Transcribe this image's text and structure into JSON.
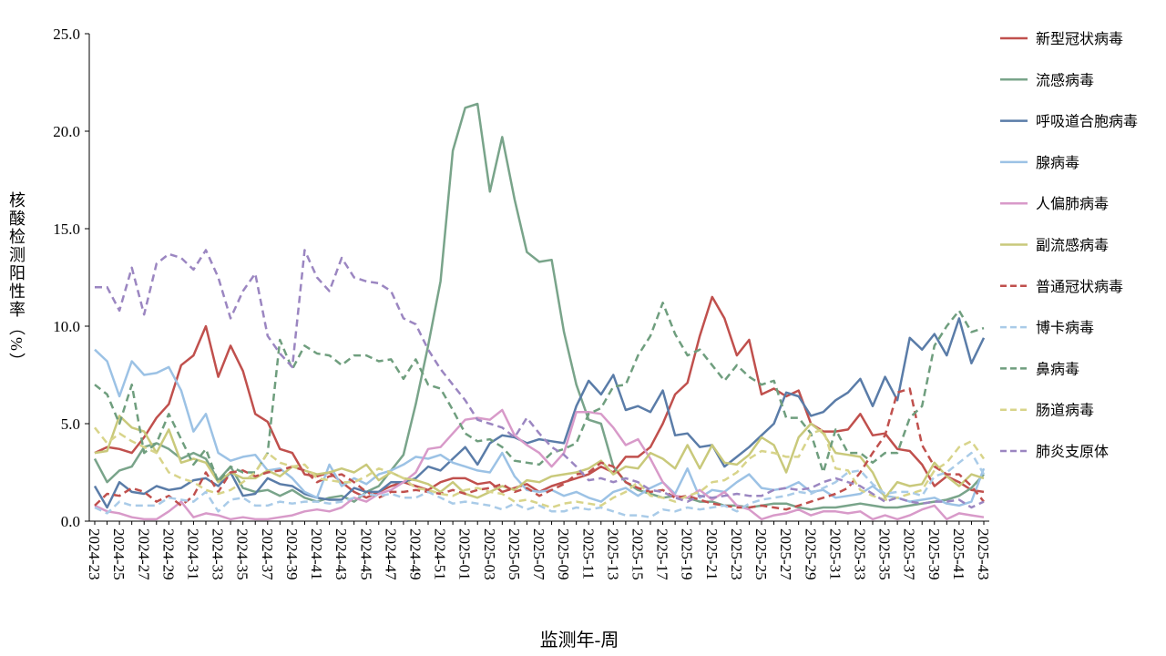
{
  "chart_data": {
    "type": "line",
    "y_label": "核酸检测阳性率（%）",
    "x_label": "监测年-周",
    "ylim": [
      0,
      25
    ],
    "yticks": [
      {
        "value": 0,
        "label": "0.0"
      },
      {
        "value": 5,
        "label": "5.0"
      },
      {
        "value": 10,
        "label": "10.0"
      },
      {
        "value": 15,
        "label": "15.0"
      },
      {
        "value": 20,
        "label": "20.0"
      },
      {
        "value": 25,
        "label": "25.0"
      }
    ],
    "grid": false,
    "legend": "right",
    "categories": [
      "2024-23",
      null,
      "2024-25",
      null,
      "2024-27",
      null,
      "2024-29",
      null,
      "2024-31",
      null,
      "2024-33",
      null,
      "2024-35",
      null,
      "2024-37",
      null,
      "2024-39",
      null,
      "2024-41",
      null,
      "2024-43",
      null,
      "2024-45",
      null,
      "2024-47",
      null,
      "2024-49",
      null,
      "2024-51",
      null,
      "2025-01",
      null,
      "2025-03",
      null,
      "2025-05",
      null,
      "2025-07",
      null,
      "2025-09",
      null,
      "2025-11",
      null,
      "2025-13",
      null,
      "2025-15",
      null,
      "2025-17",
      null,
      "2025-19",
      null,
      "2025-21",
      null,
      "2025-23",
      null,
      "2025-25",
      null,
      "2025-27",
      null,
      "2025-29",
      null,
      "2025-31",
      null,
      "2025-33",
      null,
      "2025-35",
      null,
      "2025-37",
      null,
      "2025-39",
      null,
      "2025-41",
      null,
      "2025-43"
    ],
    "series": [
      {
        "name": "新型冠状病毒",
        "color": "#c0504d",
        "style": "solid",
        "values": [
          3.5,
          3.8,
          3.7,
          3.5,
          4.3,
          5.3,
          6.0,
          8.0,
          8.5,
          10.0,
          7.4,
          9.0,
          7.7,
          5.5,
          5.1,
          3.7,
          3.5,
          2.4,
          2.3,
          2.5,
          2.0,
          1.5,
          1.2,
          1.5,
          1.8,
          2.0,
          1.8,
          1.6,
          2.0,
          2.2,
          2.2,
          1.9,
          2.0,
          1.5,
          1.7,
          1.9,
          1.5,
          1.8,
          2.0,
          2.2,
          2.4,
          2.8,
          2.5,
          3.3,
          3.3,
          3.8,
          5.0,
          6.5,
          7.1,
          9.5,
          11.5,
          10.4,
          8.5,
          9.3,
          6.5,
          6.8,
          6.4,
          6.7,
          5.0,
          4.6,
          4.6,
          4.7,
          5.5,
          4.4,
          4.5,
          3.7,
          3.6,
          2.9,
          1.8,
          2.3,
          2.0,
          1.6,
          1.5
        ]
      },
      {
        "name": "流感病毒",
        "color": "#79a48a",
        "style": "solid",
        "values": [
          3.2,
          2.0,
          2.6,
          2.8,
          3.8,
          4.0,
          3.7,
          3.2,
          3.5,
          3.2,
          2.1,
          2.8,
          1.7,
          1.5,
          1.6,
          1.3,
          1.6,
          1.2,
          1.0,
          1.2,
          1.3,
          1.0,
          1.5,
          1.8,
          2.6,
          3.4,
          6.0,
          9.0,
          12.3,
          19.0,
          21.2,
          21.4,
          16.9,
          19.7,
          16.5,
          13.8,
          13.3,
          13.4,
          9.7,
          7.0,
          5.2,
          5.0,
          2.8,
          2.0,
          1.6,
          1.4,
          1.2,
          1.3,
          1.2,
          1.0,
          1.0,
          0.8,
          0.8,
          0.7,
          0.8,
          0.9,
          0.9,
          0.7,
          0.6,
          0.7,
          0.7,
          0.8,
          0.9,
          0.8,
          0.7,
          0.7,
          0.8,
          0.9,
          1.0,
          1.1,
          1.3,
          1.7,
          2.4
        ]
      },
      {
        "name": "呼吸道合胞病毒",
        "color": "#5a7ca8",
        "style": "solid",
        "values": [
          1.8,
          0.7,
          2.0,
          1.5,
          1.4,
          1.8,
          1.6,
          1.7,
          2.1,
          2.2,
          1.8,
          2.5,
          1.3,
          1.4,
          2.2,
          1.9,
          1.8,
          1.4,
          1.2,
          1.1,
          1.1,
          1.7,
          1.5,
          1.5,
          2.0,
          2.0,
          2.2,
          2.8,
          2.6,
          3.2,
          3.8,
          2.9,
          4.0,
          4.4,
          4.3,
          4.0,
          4.2,
          4.1,
          4.0,
          5.9,
          7.2,
          6.5,
          7.5,
          5.7,
          5.9,
          5.6,
          6.7,
          4.4,
          4.5,
          3.8,
          3.9,
          2.8,
          3.3,
          3.8,
          4.4,
          5.0,
          6.6,
          6.4,
          5.4,
          5.6,
          6.2,
          6.6,
          7.3,
          5.9,
          7.4,
          6.2,
          9.4,
          8.8,
          9.6,
          8.5,
          10.4,
          8.1,
          9.4
        ]
      },
      {
        "name": "腺病毒",
        "color": "#9cc2e5",
        "style": "solid",
        "values": [
          8.8,
          8.2,
          6.4,
          8.2,
          7.5,
          7.6,
          7.9,
          6.7,
          4.6,
          5.5,
          3.5,
          3.1,
          3.3,
          3.4,
          2.6,
          2.7,
          2.2,
          1.5,
          1.2,
          2.9,
          1.8,
          2.2,
          1.9,
          2.4,
          2.6,
          2.9,
          3.3,
          3.2,
          3.4,
          3.0,
          2.8,
          2.6,
          2.5,
          3.5,
          2.3,
          1.6,
          1.5,
          1.6,
          1.3,
          1.5,
          1.2,
          1.0,
          1.5,
          1.7,
          1.3,
          1.7,
          2.0,
          1.4,
          2.7,
          1.2,
          1.6,
          1.5,
          2.0,
          2.4,
          1.7,
          1.6,
          1.7,
          2.0,
          1.5,
          1.6,
          1.2,
          1.3,
          1.4,
          1.8,
          1.3,
          1.2,
          1.0,
          1.1,
          1.2,
          0.9,
          0.8,
          1.0,
          2.7
        ]
      },
      {
        "name": "人偏肺病毒",
        "color": "#d89ac9",
        "style": "solid",
        "values": [
          0.8,
          0.5,
          0.4,
          0.2,
          0.1,
          0.1,
          0.5,
          1.0,
          0.2,
          0.4,
          0.3,
          0.1,
          0.2,
          0.1,
          0.1,
          0.2,
          0.3,
          0.5,
          0.6,
          0.5,
          0.7,
          1.2,
          1.0,
          1.4,
          1.6,
          2.0,
          2.5,
          3.7,
          3.8,
          4.5,
          5.2,
          5.3,
          5.2,
          5.7,
          4.4,
          3.9,
          3.5,
          2.8,
          3.5,
          5.6,
          5.6,
          5.5,
          4.8,
          3.9,
          4.2,
          3.2,
          2.0,
          1.3,
          1.2,
          1.6,
          1.1,
          1.5,
          0.8,
          0.6,
          0.1,
          0.3,
          0.4,
          0.6,
          0.3,
          0.5,
          0.5,
          0.4,
          0.5,
          0.1,
          0.3,
          0.1,
          0.3,
          0.6,
          0.8,
          0.1,
          0.4,
          0.3,
          0.2
        ]
      },
      {
        "name": "副流感病毒",
        "color": "#c9c97b",
        "style": "solid",
        "values": [
          3.5,
          3.6,
          5.4,
          4.8,
          4.6,
          3.5,
          4.7,
          3.0,
          3.2,
          3.0,
          2.0,
          2.5,
          2.2,
          2.2,
          2.6,
          2.3,
          2.8,
          2.6,
          2.4,
          2.5,
          2.7,
          2.5,
          2.9,
          2.1,
          2.5,
          2.2,
          2.1,
          1.9,
          1.5,
          2.0,
          1.4,
          1.2,
          1.5,
          1.8,
          1.6,
          2.1,
          2.0,
          2.3,
          2.4,
          2.5,
          2.7,
          3.1,
          2.4,
          2.8,
          2.7,
          3.5,
          3.2,
          2.7,
          3.9,
          2.7,
          3.9,
          3.0,
          2.9,
          3.4,
          4.3,
          3.9,
          2.5,
          4.3,
          5.0,
          4.5,
          3.5,
          3.4,
          3.3,
          2.5,
          1.2,
          2.0,
          1.8,
          1.9,
          3.0,
          2.3,
          1.8,
          2.4,
          2.2
        ]
      },
      {
        "name": "普通冠状病毒",
        "color": "#c0504d",
        "style": "dashed",
        "values": [
          0.8,
          1.4,
          1.3,
          1.7,
          1.5,
          1.0,
          1.3,
          0.8,
          1.3,
          2.5,
          1.5,
          2.5,
          2.6,
          2.3,
          2.5,
          2.6,
          2.8,
          2.6,
          2.0,
          2.3,
          2.4,
          2.0,
          1.5,
          1.2,
          1.5,
          1.5,
          1.6,
          1.5,
          1.4,
          1.6,
          1.4,
          1.6,
          1.7,
          1.9,
          1.5,
          1.7,
          1.3,
          1.6,
          1.9,
          2.4,
          2.5,
          3.0,
          2.8,
          2.0,
          1.7,
          1.5,
          1.6,
          1.2,
          1.3,
          1.1,
          0.9,
          0.8,
          0.7,
          0.7,
          0.8,
          0.7,
          0.6,
          0.8,
          1.0,
          1.2,
          1.4,
          1.7,
          2.5,
          3.5,
          4.4,
          6.6,
          6.8,
          3.9,
          2.8,
          2.4,
          2.4,
          1.8,
          1.0
        ]
      },
      {
        "name": "博卡病毒",
        "color": "#a9cbe8",
        "style": "dashed",
        "values": [
          0.7,
          0.4,
          1.0,
          0.8,
          0.8,
          0.8,
          1.2,
          1.1,
          1.0,
          1.5,
          0.5,
          1.1,
          1.2,
          0.8,
          0.8,
          1.0,
          0.9,
          1.0,
          1.0,
          0.9,
          1.0,
          1.2,
          1.4,
          1.3,
          1.4,
          1.2,
          1.2,
          1.5,
          1.2,
          0.9,
          1.0,
          0.9,
          0.8,
          0.6,
          0.9,
          0.6,
          0.8,
          0.5,
          0.5,
          0.7,
          0.6,
          0.7,
          0.5,
          0.3,
          0.3,
          0.2,
          0.6,
          0.5,
          0.7,
          0.6,
          0.7,
          0.8,
          0.5,
          0.9,
          1.1,
          1.2,
          1.3,
          1.5,
          1.4,
          1.7,
          2.0,
          2.5,
          2.6,
          1.9,
          1.4,
          1.5,
          1.5,
          1.3,
          2.3,
          2.5,
          3.0,
          3.5,
          2.4
        ]
      },
      {
        "name": "鼻病毒",
        "color": "#6f9e7e",
        "style": "dashed",
        "values": [
          7.0,
          6.5,
          5.0,
          7.0,
          3.5,
          4.0,
          5.5,
          4.2,
          2.9,
          3.7,
          2.0,
          2.8,
          2.5,
          2.5,
          3.5,
          9.3,
          7.8,
          9.0,
          8.6,
          8.5,
          8.0,
          8.5,
          8.5,
          8.2,
          8.3,
          7.3,
          8.3,
          7.0,
          6.8,
          5.7,
          4.5,
          4.1,
          4.2,
          3.8,
          3.1,
          3.0,
          2.9,
          3.5,
          3.7,
          4.0,
          5.5,
          5.8,
          6.9,
          7.0,
          8.5,
          9.5,
          11.2,
          9.6,
          8.5,
          8.8,
          8.0,
          7.2,
          8.0,
          7.4,
          7.0,
          7.2,
          5.3,
          5.3,
          4.5,
          2.5,
          4.7,
          3.5,
          3.5,
          3.0,
          3.5,
          3.5,
          5.3,
          5.9,
          9.0,
          10.0,
          10.8,
          9.7,
          9.9
        ]
      },
      {
        "name": "肠道病毒",
        "color": "#d8d48a",
        "style": "dashed",
        "values": [
          4.8,
          4.0,
          4.5,
          4.1,
          3.8,
          3.5,
          2.5,
          2.2,
          2.0,
          1.6,
          1.4,
          1.6,
          2.0,
          2.5,
          3.5,
          3.0,
          2.8,
          2.9,
          2.2,
          2.1,
          2.0,
          2.0,
          2.3,
          2.7,
          2.5,
          2.2,
          1.7,
          1.6,
          1.4,
          1.3,
          1.6,
          1.7,
          1.5,
          1.4,
          1.0,
          1.1,
          0.9,
          0.7,
          0.9,
          1.0,
          0.9,
          0.8,
          1.2,
          1.5,
          2.0,
          1.3,
          1.2,
          1.0,
          1.3,
          1.5,
          2.0,
          2.1,
          2.5,
          3.2,
          3.6,
          3.5,
          3.3,
          3.3,
          4.5,
          4.7,
          2.7,
          2.6,
          1.6,
          1.3,
          1.1,
          1.2,
          1.4,
          1.6,
          2.6,
          3.0,
          3.8,
          4.1,
          3.2
        ]
      },
      {
        "name": "肺炎支原体",
        "color": "#9b86c1",
        "style": "dashed",
        "values": [
          12.0,
          12.0,
          10.8,
          13.0,
          10.6,
          13.2,
          13.7,
          13.5,
          12.9,
          13.9,
          12.5,
          10.4,
          11.8,
          12.7,
          9.5,
          8.6,
          7.9,
          13.9,
          12.5,
          11.8,
          13.5,
          12.5,
          12.3,
          12.2,
          11.8,
          10.4,
          10.1,
          8.8,
          7.8,
          7.0,
          6.2,
          5.2,
          5.0,
          4.8,
          4.3,
          5.3,
          4.5,
          3.8,
          3.4,
          2.8,
          2.1,
          2.2,
          2.0,
          2.2,
          2.0,
          1.6,
          1.5,
          1.2,
          1.0,
          1.3,
          1.2,
          1.3,
          1.4,
          1.3,
          1.3,
          1.6,
          1.7,
          1.6,
          1.7,
          2.0,
          2.2,
          2.0,
          1.8,
          1.4,
          1.0,
          1.2,
          1.0,
          0.9,
          1.0,
          1.0,
          1.1,
          0.7,
          1.0
        ]
      }
    ]
  }
}
